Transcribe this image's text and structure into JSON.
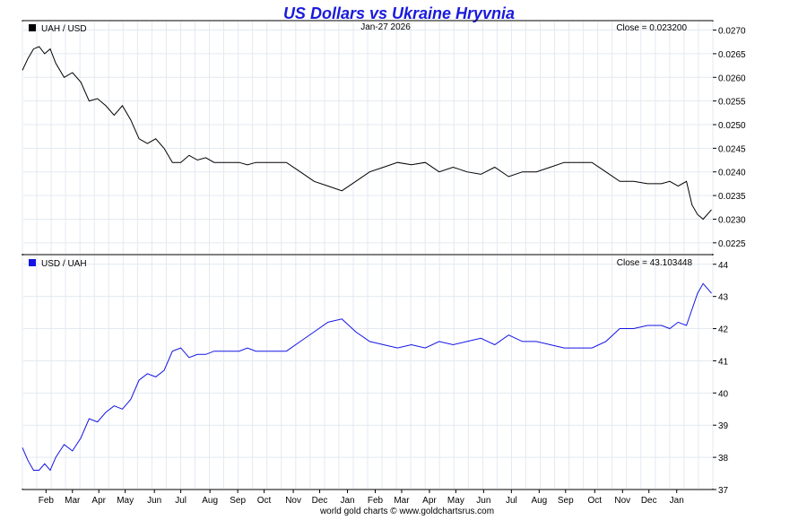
{
  "title": "US Dollars vs Ukraine Hryvnia",
  "footer": "world gold charts © www.goldchartsrus.com",
  "colors": {
    "title": "#1a1adc",
    "grid": "#e3e9f0",
    "axis": "#000000",
    "series1": "#000000",
    "series2": "#1414e6"
  },
  "chart_data": [
    {
      "type": "line",
      "name": "top-panel",
      "legend": "UAH / USD",
      "legend_color": "#000000",
      "date_label": "Jan-27  2026",
      "close_label": "Close = 0.023200",
      "ylim": [
        0.02225,
        0.0272
      ],
      "y_ticks": [
        "0.0270",
        "0.0265",
        "0.0260",
        "0.0255",
        "0.0250",
        "0.0245",
        "0.0240",
        "0.0235",
        "0.0230",
        "0.0225"
      ],
      "y_tick_values": [
        0.027,
        0.0265,
        0.026,
        0.0255,
        0.025,
        0.0245,
        0.024,
        0.0235,
        0.023,
        0.0225
      ],
      "x_range": [
        0,
        24.85
      ],
      "series": [
        {
          "name": "UAH / USD",
          "color": "#000000",
          "x": [
            0,
            0.2,
            0.4,
            0.6,
            0.8,
            1.0,
            1.2,
            1.5,
            1.8,
            2.1,
            2.4,
            2.7,
            3.0,
            3.3,
            3.6,
            3.9,
            4.2,
            4.5,
            4.8,
            5.1,
            5.4,
            5.7,
            6.0,
            6.3,
            6.6,
            6.9,
            7.2,
            7.5,
            7.8,
            8.1,
            8.4,
            8.7,
            9.0,
            9.5,
            10.0,
            10.5,
            11.0,
            11.5,
            12.0,
            12.5,
            13.0,
            13.5,
            14.0,
            14.5,
            15.0,
            15.5,
            16.0,
            16.5,
            17.0,
            17.5,
            18.0,
            18.5,
            19.0,
            19.5,
            20.0,
            20.5,
            21.0,
            21.5,
            22.0,
            22.5,
            23.0,
            23.3,
            23.6,
            23.9,
            24.1,
            24.3,
            24.5,
            24.8
          ],
          "y": [
            0.02615,
            0.0264,
            0.0266,
            0.02665,
            0.0265,
            0.0266,
            0.0263,
            0.026,
            0.0261,
            0.0259,
            0.0255,
            0.02555,
            0.0254,
            0.0252,
            0.0254,
            0.0251,
            0.0247,
            0.0246,
            0.0247,
            0.0245,
            0.0242,
            0.0242,
            0.02435,
            0.02425,
            0.0243,
            0.0242,
            0.0242,
            0.0242,
            0.0242,
            0.02415,
            0.0242,
            0.0242,
            0.0242,
            0.0242,
            0.024,
            0.0238,
            0.0237,
            0.0236,
            0.0238,
            0.024,
            0.0241,
            0.0242,
            0.02415,
            0.0242,
            0.024,
            0.0241,
            0.024,
            0.02395,
            0.0241,
            0.0239,
            0.024,
            0.024,
            0.0241,
            0.0242,
            0.0242,
            0.0242,
            0.024,
            0.0238,
            0.0238,
            0.02375,
            0.02375,
            0.0238,
            0.0237,
            0.0238,
            0.0233,
            0.0231,
            0.023,
            0.0232
          ]
        }
      ]
    },
    {
      "type": "line",
      "name": "bottom-panel",
      "legend": "USD / UAH",
      "legend_color": "#1414e6",
      "close_label": "Close = 43.103448",
      "ylim": [
        37,
        44.3
      ],
      "y_ticks": [
        "44",
        "43",
        "42",
        "41",
        "40",
        "39",
        "38",
        "37"
      ],
      "y_tick_values": [
        44,
        43,
        42,
        41,
        40,
        39,
        38,
        37
      ],
      "x_ticks": [
        "Feb",
        "Mar",
        "Apr",
        "May",
        "Jun",
        "Jul",
        "Aug",
        "Sep",
        "Oct",
        "Nov",
        "Dec",
        "Jan",
        "Feb",
        "Mar",
        "Apr",
        "May",
        "Jun",
        "Jul",
        "Aug",
        "Sep",
        "Oct",
        "Nov",
        "Dec",
        "Jan"
      ],
      "x_tick_values": [
        0.85,
        1.8,
        2.75,
        3.7,
        4.75,
        5.7,
        6.75,
        7.75,
        8.7,
        9.75,
        10.7,
        11.7,
        12.7,
        13.65,
        14.65,
        15.6,
        16.6,
        17.6,
        18.6,
        19.55,
        20.6,
        21.6,
        22.55,
        23.55
      ],
      "x_range": [
        0,
        24.85
      ],
      "series": [
        {
          "name": "USD / UAH",
          "color": "#1414e6",
          "x": [
            0,
            0.2,
            0.4,
            0.6,
            0.8,
            1.0,
            1.2,
            1.5,
            1.8,
            2.1,
            2.4,
            2.7,
            3.0,
            3.3,
            3.6,
            3.9,
            4.2,
            4.5,
            4.8,
            5.1,
            5.4,
            5.7,
            6.0,
            6.3,
            6.6,
            6.9,
            7.2,
            7.5,
            7.8,
            8.1,
            8.4,
            8.7,
            9.0,
            9.5,
            10.0,
            10.5,
            11.0,
            11.5,
            12.0,
            12.5,
            13.0,
            13.5,
            14.0,
            14.5,
            15.0,
            15.5,
            16.0,
            16.5,
            17.0,
            17.5,
            18.0,
            18.5,
            19.0,
            19.5,
            20.0,
            20.5,
            21.0,
            21.5,
            22.0,
            22.5,
            23.0,
            23.3,
            23.6,
            23.9,
            24.1,
            24.3,
            24.5,
            24.8
          ],
          "y": [
            38.3,
            37.9,
            37.6,
            37.6,
            37.8,
            37.6,
            38.0,
            38.4,
            38.2,
            38.6,
            39.2,
            39.1,
            39.4,
            39.6,
            39.5,
            39.8,
            40.4,
            40.6,
            40.5,
            40.7,
            41.3,
            41.4,
            41.1,
            41.2,
            41.2,
            41.3,
            41.3,
            41.3,
            41.3,
            41.4,
            41.3,
            41.3,
            41.3,
            41.3,
            41.6,
            41.9,
            42.2,
            42.3,
            41.9,
            41.6,
            41.5,
            41.4,
            41.5,
            41.4,
            41.6,
            41.5,
            41.6,
            41.7,
            41.5,
            41.8,
            41.6,
            41.6,
            41.5,
            41.4,
            41.4,
            41.4,
            41.6,
            42.0,
            42.0,
            42.1,
            42.1,
            42.0,
            42.2,
            42.1,
            42.6,
            43.1,
            43.4,
            43.1
          ]
        }
      ]
    }
  ]
}
